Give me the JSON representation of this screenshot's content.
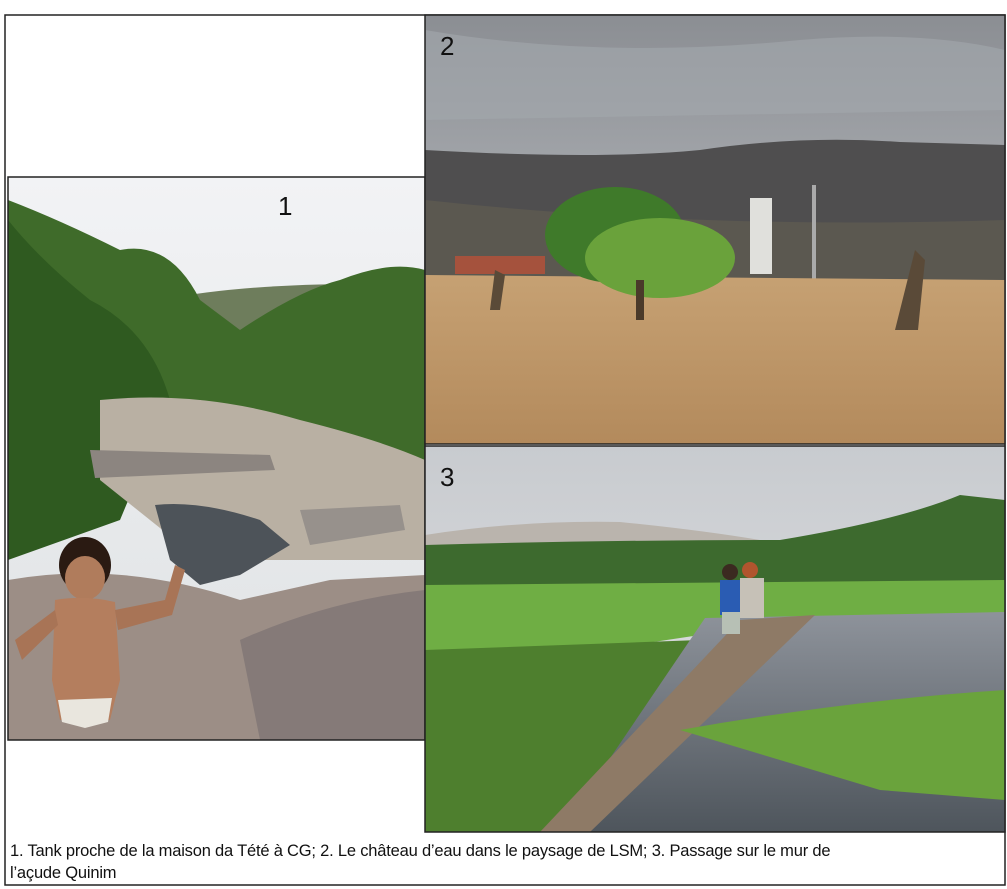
{
  "photos": [
    {
      "label": "1"
    },
    {
      "label": "2"
    },
    {
      "label": "3"
    }
  ],
  "caption": [
    "1. Tank proche de la maison da Tété à CG; 2. Le château d’eau dans le paysage de LSM; 3. Passage sur le mur de",
    "l’açude Quinim"
  ]
}
